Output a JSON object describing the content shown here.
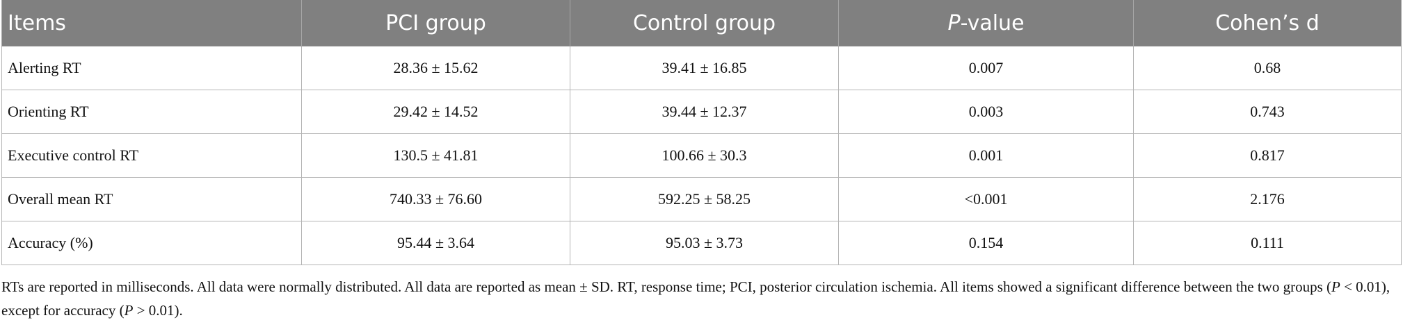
{
  "table": {
    "header": [
      "Items",
      "PCI group",
      "Control group",
      {
        "italic": "P",
        "text": "-value"
      },
      "Cohen’s d"
    ],
    "rows": [
      [
        "Alerting RT",
        "28.36 ± 15.62",
        "39.41 ± 16.85",
        "0.007",
        "0.68"
      ],
      [
        "Orienting RT",
        "29.42 ± 14.52",
        "39.44 ± 12.37",
        "0.003",
        "0.743"
      ],
      [
        "Executive control RT",
        "130.5 ± 41.81",
        "100.66 ± 30.3",
        "0.001",
        "0.817"
      ],
      [
        "Overall mean RT",
        "740.33 ± 76.60",
        "592.25 ± 58.25",
        "<0.001",
        "2.176"
      ],
      [
        "Accuracy (%)",
        "95.44 ± 3.64",
        "95.03 ± 3.73",
        "0.154",
        "0.111"
      ]
    ]
  },
  "footnote": [
    {
      "text": "RTs are reported in milliseconds. All data were normally distributed. All data are reported as mean ± SD. RT, response time; PCI, posterior circulation ischemia. All items showed a significant difference between the two groups ("
    },
    {
      "italic": "P"
    },
    {
      "text": " < 0.01), except for accuracy ("
    },
    {
      "italic": "P"
    },
    {
      "text": " > 0.01)."
    }
  ]
}
